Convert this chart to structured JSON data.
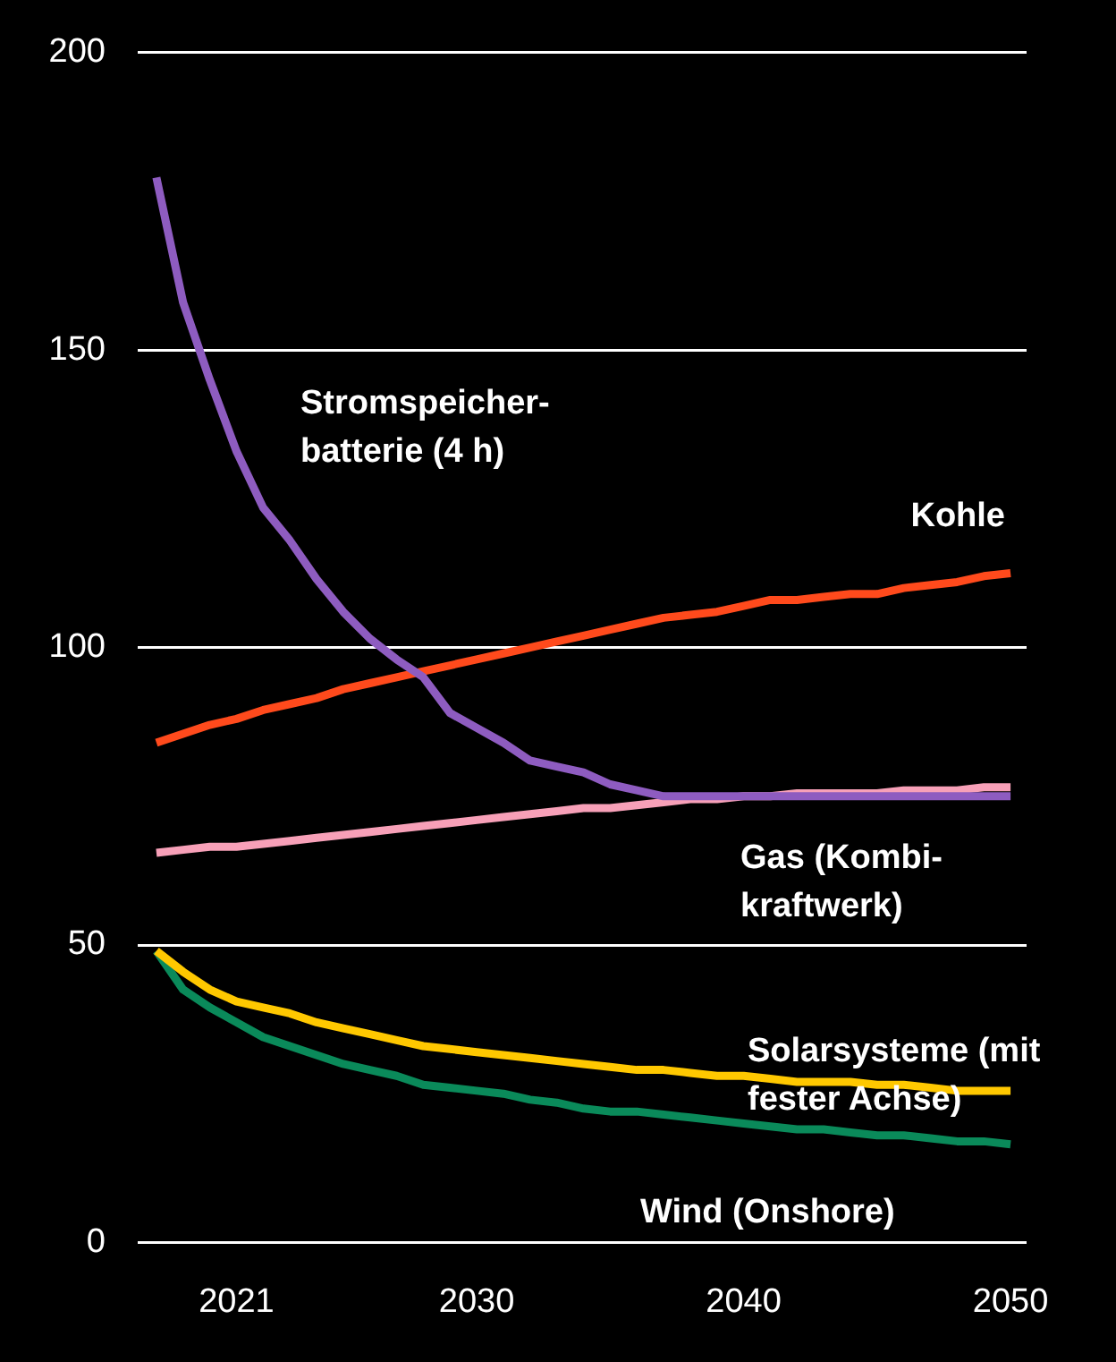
{
  "chart_data": {
    "type": "line",
    "x": [
      2018,
      2019,
      2020,
      2021,
      2022,
      2023,
      2024,
      2025,
      2026,
      2027,
      2028,
      2029,
      2030,
      2031,
      2032,
      2033,
      2034,
      2035,
      2036,
      2037,
      2038,
      2039,
      2040,
      2041,
      2042,
      2043,
      2044,
      2045,
      2046,
      2047,
      2048,
      2049,
      2050
    ],
    "series": [
      {
        "name": "Stromspeicher-batterie (4 h)",
        "color": "#8e5cc0",
        "values": [
          179,
          158,
          145,
          133,
          123.5,
          118,
          111.5,
          106,
          101.5,
          98,
          95,
          89,
          86.5,
          84,
          81,
          80,
          79,
          77,
          76,
          75,
          75,
          75,
          75,
          75,
          75,
          75,
          75,
          75,
          75,
          75,
          75,
          75,
          75
        ]
      },
      {
        "name": "Kohle",
        "color": "#ff4a1c",
        "values": [
          84,
          85.5,
          87,
          88,
          89.5,
          90.5,
          91.5,
          93,
          94,
          95,
          96,
          97,
          98,
          99,
          100,
          101,
          102,
          103,
          104,
          105,
          105.5,
          106,
          107,
          108,
          108,
          108.5,
          109,
          109,
          110,
          110.5,
          111,
          112,
          112.5
        ]
      },
      {
        "name": "Gas (Kombi-kraftwerk)",
        "color": "#f7a0b8",
        "values": [
          65.5,
          66,
          66.5,
          66.5,
          67,
          67.5,
          68,
          68.5,
          69,
          69.5,
          70,
          70.5,
          71,
          71.5,
          72,
          72.5,
          73,
          73,
          73.5,
          74,
          74.5,
          74.5,
          75,
          75,
          75.5,
          75.5,
          75.5,
          75.5,
          76,
          76,
          76,
          76.5,
          76.5
        ]
      },
      {
        "name": "Solarsysteme (mit fester Achse)",
        "color": "#ffc800",
        "values": [
          49,
          45.5,
          42.5,
          40.5,
          39.5,
          38.5,
          37,
          36,
          35,
          34,
          33,
          32.5,
          32,
          31.5,
          31,
          30.5,
          30,
          29.5,
          29,
          29,
          28.5,
          28,
          28,
          27.5,
          27,
          27,
          27,
          26.5,
          26.5,
          26,
          25.5,
          25.5,
          25.5
        ]
      },
      {
        "name": "Wind (Onshore)",
        "color": "#0a8a5a",
        "values": [
          49,
          42.5,
          39.5,
          37,
          34.5,
          33,
          31.5,
          30,
          29,
          28,
          26.5,
          26,
          25.5,
          25,
          24,
          23.5,
          22.5,
          22,
          22,
          21.5,
          21,
          20.5,
          20,
          19.5,
          19,
          19,
          18.5,
          18,
          18,
          17.5,
          17,
          17,
          16.5
        ]
      }
    ],
    "xlim": [
      2017.3,
      2050.6
    ],
    "xticks": [
      2021,
      2030,
      2040,
      2050
    ],
    "ylim": [
      0,
      200
    ],
    "yticks": [
      0,
      50,
      100,
      150,
      200
    ],
    "grid": "y",
    "legend": false,
    "marker": "none",
    "line_style": "solid"
  }
}
